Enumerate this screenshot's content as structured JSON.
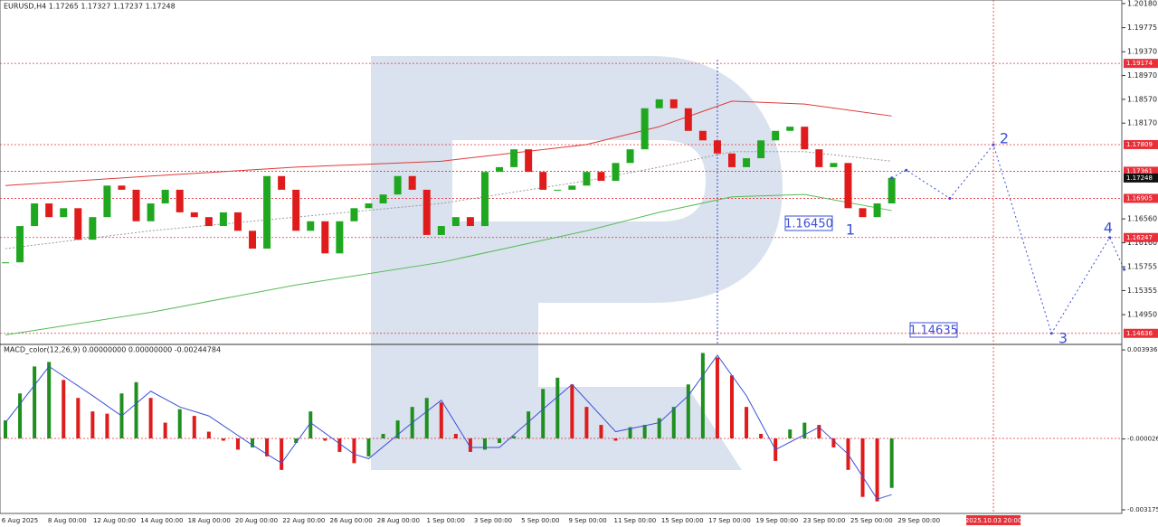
{
  "chart_data": [
    {
      "type": "candlestick",
      "title": "EURUSD,H4  1.17265 1.17327 1.17237 1.17248",
      "up_color": "#1fa81f",
      "down_color": "#e01b1b",
      "close": [
        1.1583,
        1.1644,
        1.1682,
        1.1659,
        1.1674,
        1.1621,
        1.1659,
        1.1712,
        1.1705,
        1.1652,
        1.1682,
        1.1705,
        1.1667,
        1.1659,
        1.1644,
        1.1667,
        1.1636,
        1.1606,
        1.1728,
        1.1705,
        1.1636,
        1.1652,
        1.1598,
        1.1652,
        1.1674,
        1.1682,
        1.1697,
        1.1728,
        1.1705,
        1.1629,
        1.1644,
        1.1659,
        1.1644,
        1.1735,
        1.1743,
        1.1773,
        1.1735,
        1.1705,
        1.1705,
        1.1712,
        1.1735,
        1.172,
        1.175,
        1.1773,
        1.1842,
        1.1857,
        1.1842,
        1.1804,
        1.1788,
        1.1766,
        1.1743,
        1.1758,
        1.1788,
        1.1804,
        1.1811,
        1.1773,
        1.1743,
        1.175,
        1.1674,
        1.1659,
        1.1682,
        1.1725
      ],
      "ylim": [
        1.1445,
        1.2024
      ],
      "yticks": [
        {
          "value": 1.2018,
          "label": "1.20180"
        },
        1.19775,
        {
          "value": 1.1937,
          "label": "1.19370"
        },
        {
          "value": 1.1897,
          "label": "1.18970"
        },
        {
          "value": 1.1857,
          "label": "1.18570"
        },
        {
          "value": 1.1817,
          "label": "1.18170"
        },
        {
          "value": 1.1656,
          "label": "1.16560"
        },
        {
          "value": 1.1616,
          "label": "1.16160"
        },
        1.15755,
        1.15355,
        {
          "value": 1.1495,
          "label": "1.14950"
        }
      ],
      "overlays": [
        {
          "color": "#e03a3a",
          "dashed": false,
          "x": [
            0,
            10,
            20,
            30,
            40,
            45,
            50,
            55,
            61
          ],
          "values": [
            1.1712,
            1.1728,
            1.1743,
            1.1753,
            1.1781,
            1.1811,
            1.1854,
            1.1849,
            1.1829
          ]
        },
        {
          "color": "#55bb55",
          "dashed": false,
          "x": [
            0,
            10,
            20,
            30,
            40,
            45,
            50,
            55,
            61
          ],
          "values": [
            1.1461,
            1.1499,
            1.1545,
            1.1583,
            1.1636,
            1.1667,
            1.1693,
            1.1697,
            1.167
          ]
        },
        {
          "color": "#9a9a9a",
          "dashed": true,
          "x": [
            0,
            10,
            20,
            30,
            40,
            45,
            50,
            55,
            61
          ],
          "values": [
            1.1606,
            1.1636,
            1.1659,
            1.1682,
            1.172,
            1.1743,
            1.1769,
            1.1769,
            1.1753
          ]
        }
      ],
      "levels": [
        1.19174,
        1.17809,
        1.17361,
        1.16905,
        1.16247,
        1.14636
      ],
      "level_color": "#e8303a",
      "current_price": 1.17248,
      "forecast": {
        "color": "#3b4fd6",
        "x": [
          61,
          62,
          65,
          68,
          72,
          76,
          77
        ],
        "values": [
          1.1725,
          1.1738,
          1.16905,
          1.17809,
          1.14636,
          1.16247,
          1.1571
        ]
      },
      "annotations": [
        "1.16450",
        "1.14635"
      ],
      "wave_labels": [
        "1",
        "2",
        "3",
        "4"
      ],
      "x_labels": [
        "6 Aug 2025",
        "8 Aug 00:00",
        "12 Aug 00:00",
        "14 Aug 00:00",
        "18 Aug 00:00",
        "20 Aug 00:00",
        "22 Aug 00:00",
        "26 Aug 00:00",
        "28 Aug 00:00",
        "1 Sep 00:00",
        "3 Sep 00:00",
        "5 Sep 00:00",
        "9 Sep 00:00",
        "11 Sep 00:00",
        "15 Sep 00:00",
        "17 Sep 00:00",
        "19 Sep 00:00",
        "23 Sep 00:00",
        "25 Sep 00:00",
        "29 Sep 00:00"
      ],
      "time_marker": {
        "label": "2025.10.03 20:00",
        "x": 68
      }
    },
    {
      "type": "macd",
      "title": "MACD_color(12,26,9) 0.00000000 0.00000000 -0.00244784",
      "up_color": "#1f8f1f",
      "down_color": "#e01b1b",
      "values": [
        0.0008,
        0.002,
        0.0032,
        0.0034,
        0.0026,
        0.0018,
        0.0012,
        0.0011,
        0.002,
        0.0025,
        0.0018,
        0.0007,
        0.0013,
        0.001,
        0.0003,
        -0.0001,
        -0.0005,
        -0.0004,
        -0.0008,
        -0.0014,
        -0.0002,
        0.0012,
        -0.0001,
        -0.0006,
        -0.0011,
        -0.0008,
        0.0002,
        0.0008,
        0.0014,
        0.0018,
        0.0016,
        0.0002,
        -0.0006,
        -0.0005,
        -0.0002,
        0.0001,
        0.0012,
        0.0022,
        0.0027,
        0.0024,
        0.0014,
        0.0006,
        -0.0001,
        0.0005,
        0.0006,
        0.0009,
        0.0014,
        0.0024,
        0.0038,
        0.0036,
        0.0028,
        0.0014,
        0.0002,
        -0.001,
        0.0004,
        0.0007,
        0.0006,
        -0.0004,
        -0.0014,
        -0.0026,
        -0.0028,
        -0.0022
      ],
      "signal": {
        "color": "#3b4fd6",
        "x": [
          0,
          3,
          6,
          8,
          10,
          12,
          14,
          17,
          19,
          21,
          24,
          25,
          28,
          30,
          32,
          34,
          37,
          39,
          42,
          45,
          47,
          49,
          51,
          53,
          56,
          58,
          60,
          61
        ],
        "values": [
          0.0007,
          0.0032,
          0.0019,
          0.001,
          0.0021,
          0.0014,
          0.001,
          -0.0003,
          -0.0011,
          0.0007,
          -0.0007,
          -0.0009,
          0.0007,
          0.0017,
          -0.0004,
          -0.0004,
          0.0013,
          0.0024,
          0.0003,
          0.0007,
          0.0019,
          0.0037,
          0.0019,
          -0.0005,
          0.0005,
          -0.0007,
          -0.0027,
          -0.0025
        ]
      },
      "ylim": [
        -0.003336,
        0.00418
      ],
      "yticks": [
        0.0039361,
        -2.6e-05,
        -0.0031754
      ]
    }
  ]
}
